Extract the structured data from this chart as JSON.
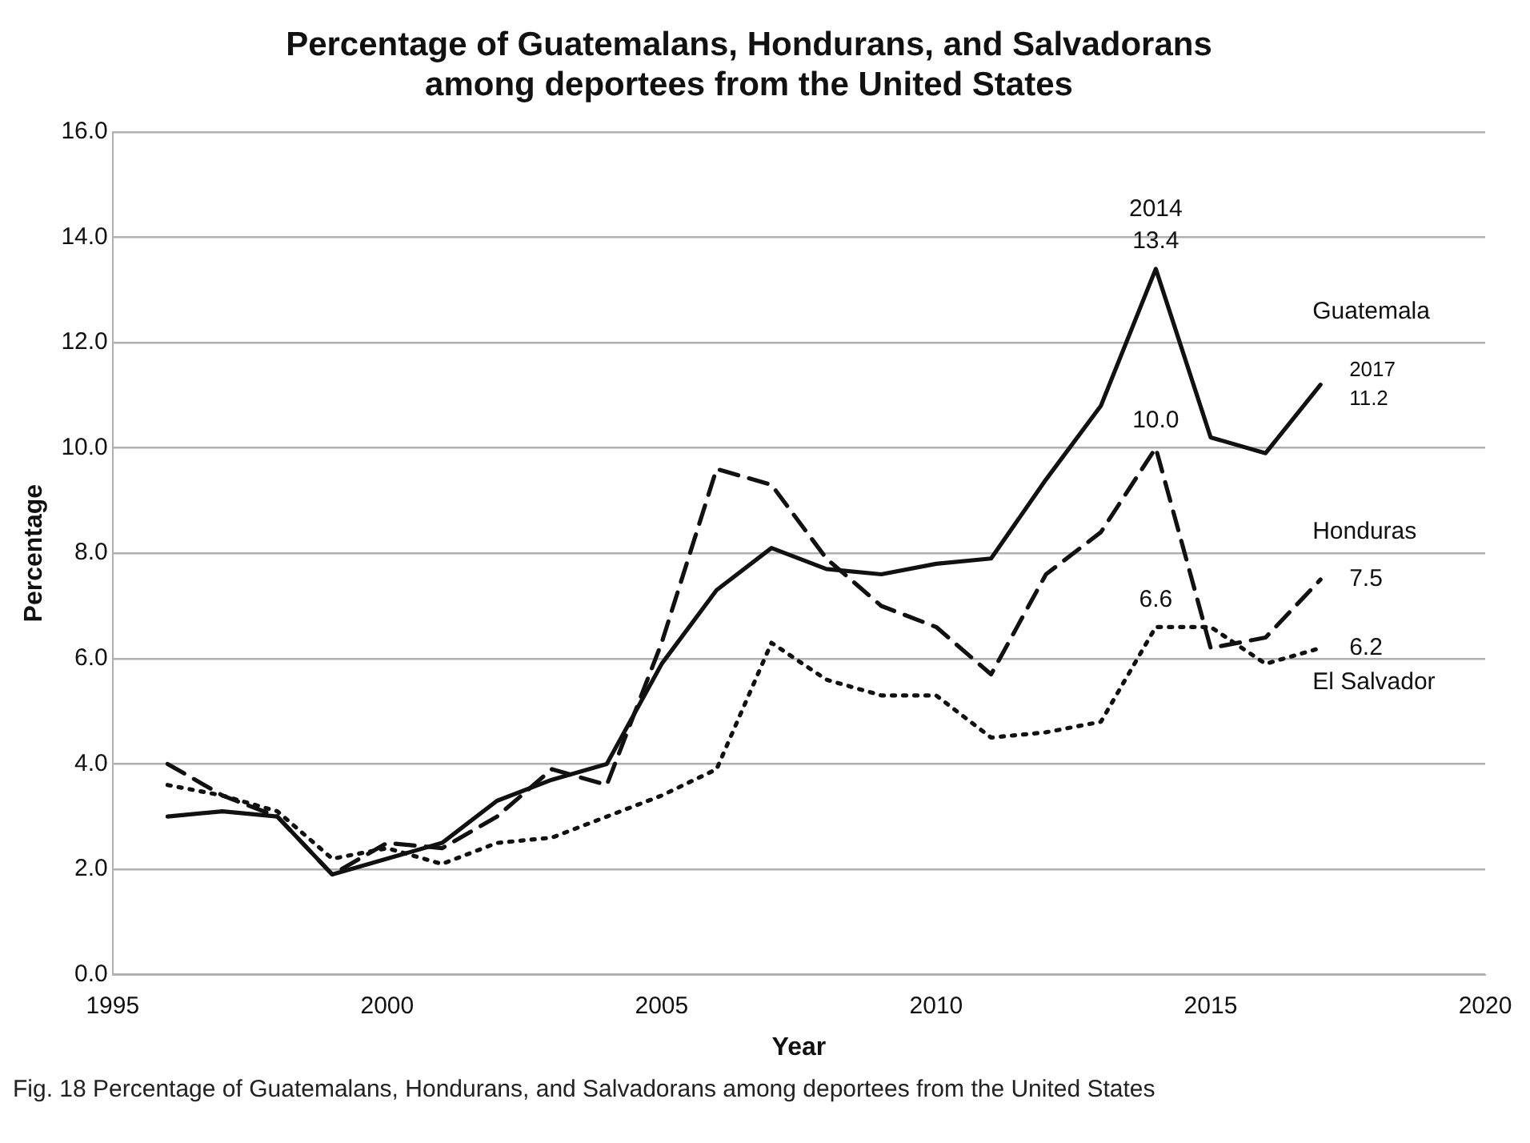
{
  "chart_data": {
    "type": "line",
    "title": "Percentage of Guatemalans, Hondurans, and Salvadorans among deportees from the United States",
    "xlabel": "Year",
    "ylabel": "Percentage",
    "x": [
      1996,
      1997,
      1998,
      1999,
      2000,
      2001,
      2002,
      2003,
      2004,
      2005,
      2006,
      2007,
      2008,
      2009,
      2010,
      2011,
      2012,
      2013,
      2014,
      2015,
      2016,
      2017
    ],
    "series": [
      {
        "name": "Guatemala",
        "color": "#111111",
        "line_style": "solid",
        "values": [
          3.0,
          3.1,
          3.0,
          1.9,
          2.2,
          2.5,
          3.3,
          3.7,
          4.0,
          5.9,
          7.3,
          8.1,
          7.7,
          7.6,
          7.8,
          7.9,
          9.4,
          10.8,
          13.4,
          10.2,
          9.9,
          11.2
        ],
        "value_labels": [
          null,
          null,
          null,
          null,
          null,
          null,
          null,
          null,
          null,
          null,
          null,
          null,
          null,
          null,
          null,
          null,
          null,
          null,
          "2014\n13.4",
          null,
          null,
          "2017\n11.2"
        ]
      },
      {
        "name": "Honduras",
        "color": "#111111",
        "line_style": "dashed",
        "values": [
          4.0,
          3.4,
          3.0,
          1.9,
          2.5,
          2.4,
          3.0,
          3.9,
          3.6,
          6.3,
          9.6,
          9.3,
          7.9,
          7.0,
          6.6,
          5.7,
          7.6,
          8.4,
          10.0,
          6.2,
          6.4,
          7.5
        ],
        "value_labels": [
          null,
          null,
          null,
          null,
          null,
          null,
          null,
          null,
          null,
          null,
          null,
          null,
          null,
          null,
          null,
          null,
          null,
          null,
          "10.0",
          null,
          null,
          "7.5"
        ]
      },
      {
        "name": "El Salvador",
        "color": "#111111",
        "line_style": "dotted",
        "values": [
          3.6,
          3.4,
          3.1,
          2.2,
          2.4,
          2.1,
          2.5,
          2.6,
          3.0,
          3.4,
          3.9,
          6.3,
          5.6,
          5.3,
          5.3,
          4.5,
          4.6,
          4.8,
          6.6,
          6.6,
          5.9,
          6.2
        ],
        "value_labels": [
          null,
          null,
          null,
          null,
          null,
          null,
          null,
          null,
          null,
          null,
          null,
          null,
          null,
          null,
          null,
          null,
          null,
          null,
          "6.6",
          null,
          null,
          "6.2"
        ]
      }
    ],
    "xlim": [
      1995,
      2020
    ],
    "xticks": [
      1995,
      2000,
      2005,
      2010,
      2015,
      2020
    ],
    "ylim": [
      0,
      16
    ],
    "yticks": [
      {
        "value": 0,
        "label": "0.0"
      },
      {
        "value": 2,
        "label": "2.0"
      },
      {
        "value": 4,
        "label": "4.0"
      },
      {
        "value": 6,
        "label": "6.0"
      },
      {
        "value": 8,
        "label": "8.0"
      },
      {
        "value": 10,
        "label": "10.0"
      },
      {
        "value": 12,
        "label": "12.0"
      },
      {
        "value": 14,
        "label": "14.0"
      },
      {
        "value": 16,
        "label": "16.0"
      }
    ],
    "grid": "y",
    "legend": false,
    "marker": "none",
    "annotations": [
      "Fig. 18 Percentage of Guatemalans, Hondurans, and Salvadorans among deportees from the United States"
    ]
  }
}
